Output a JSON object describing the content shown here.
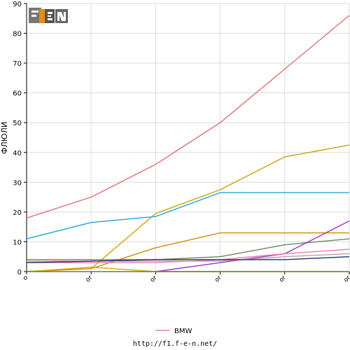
{
  "chart_data": {
    "type": "line",
    "title": "",
    "ylabel": "ФЛЮЛИ",
    "xlabel": "",
    "ylim": [
      0,
      90
    ],
    "y_ticks": [
      0,
      10,
      20,
      30,
      40,
      50,
      60,
      70,
      80,
      90
    ],
    "x": [
      0,
      1,
      2,
      3,
      4,
      5
    ],
    "x_tick_labels": [
      "o",
      "or",
      "or",
      "or",
      "or",
      "or"
    ],
    "grid": true,
    "legend": "bottom-center",
    "series": [
      {
        "name": "BMW",
        "color": "#e07070",
        "values": [
          18,
          25,
          36,
          50,
          68,
          86
        ]
      },
      {
        "name": "",
        "color": "#c8a400",
        "values": [
          0,
          1,
          19.5,
          27.5,
          38.5,
          42.5
        ]
      },
      {
        "name": "",
        "color": "#1ea7d8",
        "values": [
          11,
          16.5,
          18.5,
          26.5,
          26.5,
          26.5
        ]
      },
      {
        "name": "",
        "color": "#d08c00",
        "values": [
          0,
          1,
          8,
          13,
          13,
          13
        ]
      },
      {
        "name": "",
        "color": "#708060",
        "values": [
          4,
          4,
          4,
          5,
          9,
          11
        ]
      },
      {
        "name": "",
        "color": "#9a36c8",
        "values": [
          null,
          null,
          0,
          3,
          6,
          17
        ]
      },
      {
        "name": "",
        "color": "#f07ab0",
        "values": [
          3,
          3,
          3,
          4,
          6,
          7.5
        ]
      },
      {
        "name": "",
        "color": "#c0a0a0",
        "values": [
          3.5,
          3.5,
          3.5,
          3.5,
          5,
          6
        ]
      },
      {
        "name": "",
        "color": "#203070",
        "values": [
          3,
          3.5,
          4,
          4,
          4,
          5
        ]
      },
      {
        "name": "",
        "color": "#c8b400",
        "values": [
          0,
          1.5,
          0,
          0,
          0,
          0
        ]
      },
      {
        "name": "",
        "color": "#608030",
        "values": [
          0,
          0,
          0,
          0,
          0,
          0
        ]
      }
    ]
  },
  "logo": {
    "text": "F1EN"
  },
  "footer": {
    "url": "http://f1.f-e-n.net/"
  }
}
